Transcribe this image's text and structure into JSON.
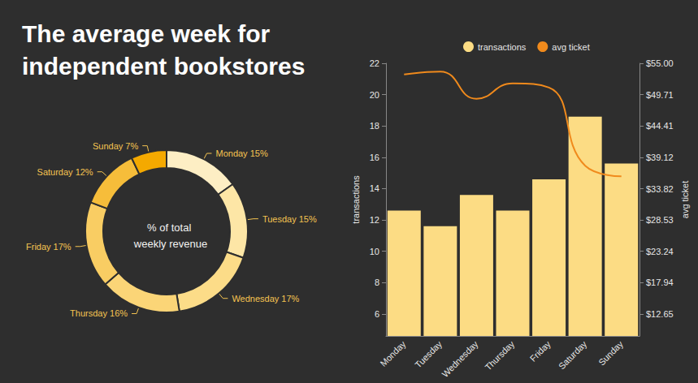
{
  "chart_data": [
    {
      "type": "pie",
      "title": "The average week for independent bookstores",
      "annotation": "% of total weekly revenue",
      "categories": [
        "Monday",
        "Tuesday",
        "Wednesday",
        "Thursday",
        "Friday",
        "Saturday",
        "Sunday"
      ],
      "values": [
        15,
        15,
        17,
        16,
        17,
        12,
        7
      ],
      "value_labels": [
        "Monday 15%",
        "Tuesday 15%",
        "Wednesday 17%",
        "Thursday 16%",
        "Friday 17%",
        "Saturday 12%",
        "Sunday 7%"
      ],
      "colors": [
        "#fdeec4",
        "#fde6a6",
        "#fcdc88",
        "#fbd577",
        "#f9cd63",
        "#f6bd3a",
        "#f4a900"
      ],
      "data_labels": true
    },
    {
      "type": "bar",
      "categories": [
        "Monday",
        "Tuesday",
        "Wednesday",
        "Thursday",
        "Friday",
        "Saturday",
        "Sunday"
      ],
      "series": [
        {
          "name": "transactions",
          "type": "bar",
          "color": "#fcdc84",
          "values": [
            12.6,
            11.6,
            13.6,
            12.6,
            14.6,
            18.6,
            15.6
          ]
        },
        {
          "name": "avg ticket",
          "type": "line",
          "axis": "y2",
          "color": "#f08a1c",
          "marker": "none",
          "line_style": "solid",
          "values": [
            53.1,
            53.6,
            49.0,
            51.6,
            50.9,
            37.7,
            35.9
          ]
        }
      ],
      "ylabel": "transactions",
      "y2label": "avg ticket",
      "ylim": [
        4.6,
        22
      ],
      "yticks": [
        6,
        8,
        10,
        12,
        14,
        16,
        18,
        20,
        22
      ],
      "y2lim": [
        8.94,
        55
      ],
      "y2ticks": [
        {
          "value": 12.65,
          "label": "$12.65"
        },
        {
          "value": 17.94,
          "label": "$17.94"
        },
        {
          "value": 23.24,
          "label": "$23.24"
        },
        {
          "value": 28.53,
          "label": "$28.53"
        },
        {
          "value": 33.82,
          "label": "$33.82"
        },
        {
          "value": 39.12,
          "label": "$39.12"
        },
        {
          "value": 44.41,
          "label": "$44.41"
        },
        {
          "value": 49.71,
          "label": "$49.71"
        },
        {
          "value": 55,
          "label": "$55.00"
        }
      ],
      "legend": "top",
      "grid": false
    }
  ]
}
